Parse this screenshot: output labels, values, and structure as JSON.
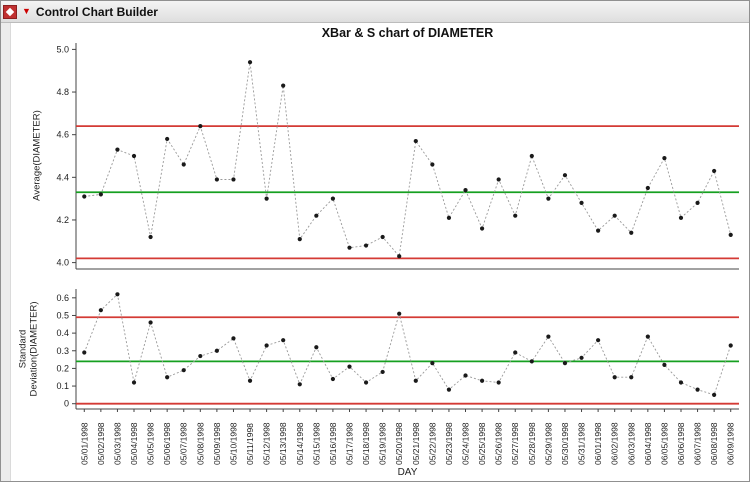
{
  "header": {
    "title": "Control Chart Builder"
  },
  "chart_data": {
    "type": "line",
    "title": "XBar & S chart of DIAMETER",
    "xlabel": "DAY",
    "x": [
      "05/01/1998",
      "05/02/1998",
      "05/03/1998",
      "05/04/1998",
      "05/05/1998",
      "05/06/1998",
      "05/07/1998",
      "05/08/1998",
      "05/09/1998",
      "05/10/1998",
      "05/11/1998",
      "05/12/1998",
      "05/13/1998",
      "05/14/1998",
      "05/15/1998",
      "05/16/1998",
      "05/17/1998",
      "05/18/1998",
      "05/19/1998",
      "05/20/1998",
      "05/21/1998",
      "05/22/1998",
      "05/23/1998",
      "05/24/1998",
      "05/25/1998",
      "05/26/1998",
      "05/27/1998",
      "05/28/1998",
      "05/29/1998",
      "05/30/1998",
      "05/31/1998",
      "06/01/1998",
      "06/02/1998",
      "06/03/1998",
      "06/04/1998",
      "06/05/1998",
      "06/06/1998",
      "06/07/1998",
      "06/08/1998",
      "06/09/1998"
    ],
    "panels": [
      {
        "name": "xbar-chart",
        "ylabel": "Average(DIAMETER)",
        "ylim": [
          3.97,
          5.03
        ],
        "ytick_values": [
          4.0,
          4.2,
          4.4,
          4.6,
          4.8,
          5.0
        ],
        "ytick_labels": [
          "4.0",
          "4.2",
          "4.4",
          "4.6",
          "4.8",
          "5.0"
        ],
        "center_line": 4.33,
        "ucl": 4.64,
        "lcl": 4.02,
        "values": [
          4.31,
          4.32,
          4.53,
          4.5,
          4.12,
          4.58,
          4.46,
          4.64,
          4.39,
          4.39,
          4.94,
          4.3,
          4.83,
          4.11,
          4.22,
          4.3,
          4.07,
          4.08,
          4.12,
          4.03,
          4.57,
          4.46,
          4.21,
          4.34,
          4.16,
          4.39,
          4.22,
          4.5,
          4.3,
          4.41,
          4.28,
          4.15,
          4.22,
          4.14,
          4.35,
          4.49,
          4.21,
          4.28,
          4.43,
          4.13
        ]
      },
      {
        "name": "s-chart",
        "ylabel": "Standard Deviation(DIAMETER)",
        "ylim": [
          -0.03,
          0.65
        ],
        "ytick_values": [
          0,
          0.1,
          0.2,
          0.3,
          0.4,
          0.5,
          0.6
        ],
        "ytick_labels": [
          "0",
          "0.1",
          "0.2",
          "0.3",
          "0.4",
          "0.5",
          "0.6"
        ],
        "center_line": 0.24,
        "ucl": 0.49,
        "lcl": 0.0,
        "values": [
          0.29,
          0.53,
          0.62,
          0.12,
          0.46,
          0.15,
          0.19,
          0.27,
          0.3,
          0.37,
          0.13,
          0.33,
          0.36,
          0.11,
          0.32,
          0.14,
          0.21,
          0.12,
          0.18,
          0.51,
          0.13,
          0.23,
          0.08,
          0.16,
          0.13,
          0.12,
          0.29,
          0.24,
          0.38,
          0.23,
          0.26,
          0.36,
          0.15,
          0.15,
          0.38,
          0.22,
          0.12,
          0.08,
          0.05,
          0.33
        ]
      }
    ],
    "styles": {
      "center_color": "#16a020",
      "limit_color": "#d43a35",
      "point_color": "#1a1a1a",
      "connector_color": "#999999",
      "axis_color": "#444444"
    }
  }
}
